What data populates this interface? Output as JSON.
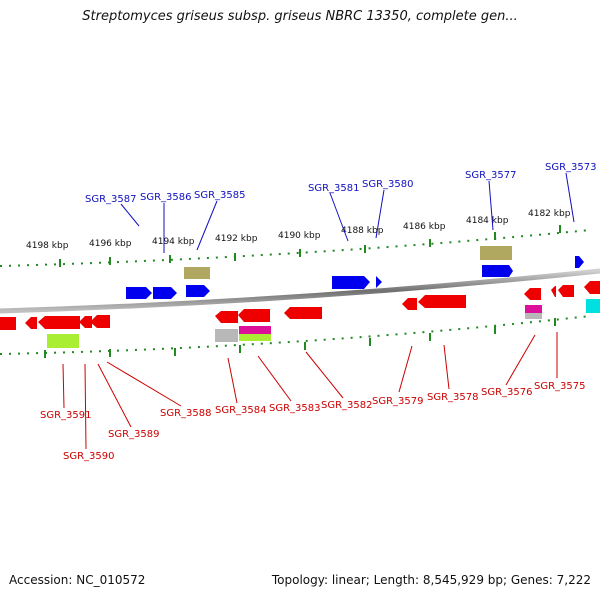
{
  "title": "Streptomyces griseus subsp. griseus NBRC 13350, complete gen...",
  "footer": {
    "accession": "Accession: NC_010572",
    "summary": "Topology: linear; Length: 8,545,929 bp; Genes: 7,222"
  },
  "colors": {
    "forward_gene": "#0000ee",
    "reverse_gene": "#ee0000",
    "forward_label": "#1010c0",
    "reverse_label": "#cc0000",
    "tick": "#228822",
    "genome_line": "#808080",
    "olive_feature": "#b0a860",
    "lime_feature": "#aaee33",
    "magenta_feature": "#dd1199",
    "gray_feature": "#b8b8b8",
    "cyan_feature": "#00e0e0"
  },
  "scale_labels": [
    "4198 kbp",
    "4196 kbp",
    "4194 kbp",
    "4192 kbp",
    "4190 kbp",
    "4188 kbp",
    "4186 kbp",
    "4184 kbp",
    "4182 kbp"
  ],
  "forward_gene_labels": [
    "SGR_3587",
    "SGR_3586",
    "SGR_3585",
    "SGR_3581",
    "SGR_3580",
    "SGR_3577",
    "SGR_3573"
  ],
  "reverse_gene_labels": [
    "SGR_3591",
    "SGR_3590",
    "SGR_3589",
    "SGR_3588",
    "SGR_3584",
    "SGR_3583",
    "SGR_3582",
    "SGR_3579",
    "SGR_3578",
    "SGR_3576",
    "SGR_3575"
  ]
}
